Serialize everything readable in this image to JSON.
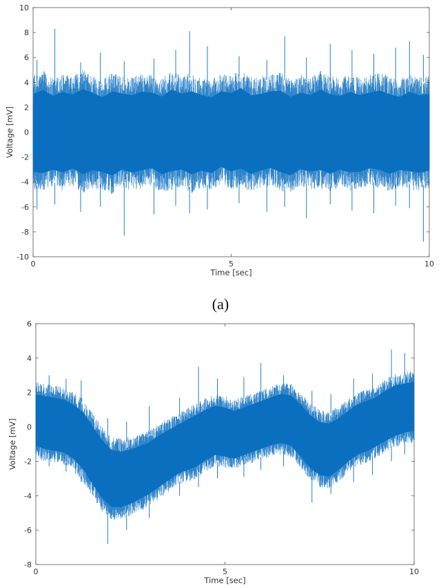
{
  "figure": {
    "captions": [
      "(a)"
    ]
  },
  "chart_data": [
    {
      "type": "line",
      "panel_label": "(a)",
      "xlabel": "Time [sec]",
      "ylabel": "Voltage [mV]",
      "xlim": [
        0,
        10
      ],
      "ylim": [
        -10,
        10
      ],
      "xticks": [
        0,
        5,
        10
      ],
      "yticks": [
        -10,
        -8,
        -6,
        -4,
        -2,
        0,
        2,
        4,
        6,
        8,
        10
      ],
      "grid": false,
      "series": [
        {
          "color": "#0a6fbf",
          "x": [
            0,
            0.25,
            0.5,
            0.75,
            1,
            1.25,
            1.5,
            1.75,
            2,
            2.25,
            2.5,
            2.75,
            3,
            3.25,
            3.5,
            3.75,
            4,
            4.25,
            4.5,
            4.75,
            5,
            5.25,
            5.5,
            5.75,
            6,
            6.25,
            6.5,
            6.75,
            7,
            7.25,
            7.5,
            7.75,
            8,
            8.25,
            8.5,
            8.75,
            9,
            9.25,
            9.5,
            9.75,
            10
          ],
          "upper": [
            4.1,
            4.5,
            3.9,
            4.3,
            4.0,
            4.6,
            4.2,
            3.8,
            4.4,
            4.1,
            4.0,
            4.3,
            4.2,
            3.9,
            4.5,
            4.1,
            4.4,
            4.0,
            3.8,
            4.3,
            4.2,
            4.6,
            4.0,
            4.1,
            4.3,
            4.4,
            3.9,
            4.2,
            4.0,
            4.5,
            4.1,
            3.9,
            4.3,
            4.0,
            4.2,
            4.4,
            4.1,
            3.8,
            4.3,
            4.0,
            4.1
          ],
          "lower": [
            -4.2,
            -4.4,
            -4.0,
            -4.3,
            -3.9,
            -4.5,
            -4.1,
            -4.2,
            -4.6,
            -4.0,
            -4.3,
            -4.1,
            -3.9,
            -4.4,
            -4.2,
            -4.0,
            -4.5,
            -4.1,
            -4.3,
            -3.8,
            -4.2,
            -4.0,
            -4.4,
            -4.1,
            -3.9,
            -4.3,
            -4.5,
            -4.0,
            -4.2,
            -4.1,
            -4.4,
            -4.0,
            -4.3,
            -4.2,
            -3.9,
            -4.1,
            -4.4,
            -4.0,
            -4.2,
            -4.3,
            -4.1
          ],
          "peaks_x": [
            0.1,
            0.55,
            1.2,
            1.7,
            2.3,
            3.05,
            3.6,
            3.95,
            4.4,
            5.2,
            5.9,
            6.35,
            6.9,
            7.5,
            8.05,
            8.6,
            9.15,
            9.5,
            9.85
          ],
          "peaks_hi": [
            5.8,
            8.3,
            5.6,
            6.4,
            5.7,
            5.9,
            6.6,
            8.1,
            6.9,
            6.1,
            5.8,
            7.7,
            6.0,
            7.1,
            6.6,
            6.3,
            6.8,
            7.3,
            6.2
          ],
          "peaks_lo": [
            -6.2,
            -5.8,
            -6.4,
            -6.0,
            -8.3,
            -6.6,
            -5.9,
            -6.5,
            -6.2,
            -5.7,
            -6.4,
            -6.0,
            -6.9,
            -5.8,
            -6.3,
            -6.5,
            -5.9,
            -6.1,
            -8.8
          ]
        }
      ]
    },
    {
      "type": "line",
      "xlabel": "Time [sec]",
      "ylabel": "Voltage [mV]",
      "xlim": [
        0,
        10
      ],
      "ylim": [
        -8,
        6
      ],
      "xticks": [
        0,
        5,
        10
      ],
      "yticks": [
        -8,
        -6,
        -4,
        -2,
        0,
        2,
        4,
        6
      ],
      "grid": false,
      "series": [
        {
          "color": "#0a6fbf",
          "x": [
            0,
            0.25,
            0.5,
            0.75,
            1,
            1.25,
            1.5,
            1.75,
            2,
            2.25,
            2.5,
            2.75,
            3,
            3.25,
            3.5,
            3.75,
            4,
            4.25,
            4.5,
            4.75,
            5,
            5.25,
            5.5,
            5.75,
            6,
            6.25,
            6.5,
            6.75,
            7,
            7.25,
            7.5,
            7.75,
            8,
            8.25,
            8.5,
            8.75,
            9,
            9.25,
            9.5,
            9.75,
            10
          ],
          "upper": [
            2.4,
            2.3,
            2.2,
            2.1,
            1.8,
            1.4,
            0.6,
            -0.2,
            -0.8,
            -0.9,
            -0.8,
            -0.6,
            -0.4,
            0.0,
            0.3,
            0.6,
            0.9,
            1.2,
            1.5,
            1.7,
            1.6,
            1.4,
            1.6,
            1.8,
            2.0,
            2.2,
            2.4,
            2.3,
            1.8,
            1.2,
            0.8,
            0.7,
            1.0,
            1.4,
            1.8,
            2.0,
            2.2,
            2.6,
            2.9,
            3.0,
            3.1
          ],
          "lower": [
            -1.6,
            -1.8,
            -1.9,
            -2.0,
            -2.4,
            -3.0,
            -3.9,
            -4.7,
            -5.2,
            -5.2,
            -5.0,
            -4.7,
            -4.4,
            -4.0,
            -3.6,
            -3.2,
            -3.0,
            -2.8,
            -2.4,
            -2.1,
            -2.2,
            -2.3,
            -2.1,
            -1.9,
            -1.7,
            -1.5,
            -1.4,
            -1.6,
            -2.2,
            -2.9,
            -3.3,
            -3.4,
            -3.0,
            -2.5,
            -2.1,
            -1.9,
            -1.6,
            -1.3,
            -1.0,
            -0.8,
            -0.7
          ],
          "peaks_x": [
            0.35,
            0.8,
            1.2,
            1.9,
            2.4,
            3.0,
            3.8,
            4.3,
            4.8,
            5.5,
            5.95,
            6.55,
            7.3,
            7.8,
            8.4,
            8.9,
            9.4,
            9.75
          ],
          "peaks_hi": [
            3.0,
            2.8,
            2.7,
            0.5,
            0.3,
            1.2,
            1.7,
            3.5,
            2.8,
            2.9,
            3.7,
            3.0,
            2.1,
            1.9,
            2.8,
            3.1,
            4.5,
            4.3
          ],
          "peaks_lo": [
            -2.3,
            -2.6,
            -3.2,
            -6.8,
            -6.0,
            -5.3,
            -4.0,
            -3.5,
            -3.0,
            -2.9,
            -2.5,
            -2.3,
            -4.4,
            -3.9,
            -3.2,
            -2.8,
            -2.0,
            -1.6
          ]
        }
      ]
    }
  ]
}
